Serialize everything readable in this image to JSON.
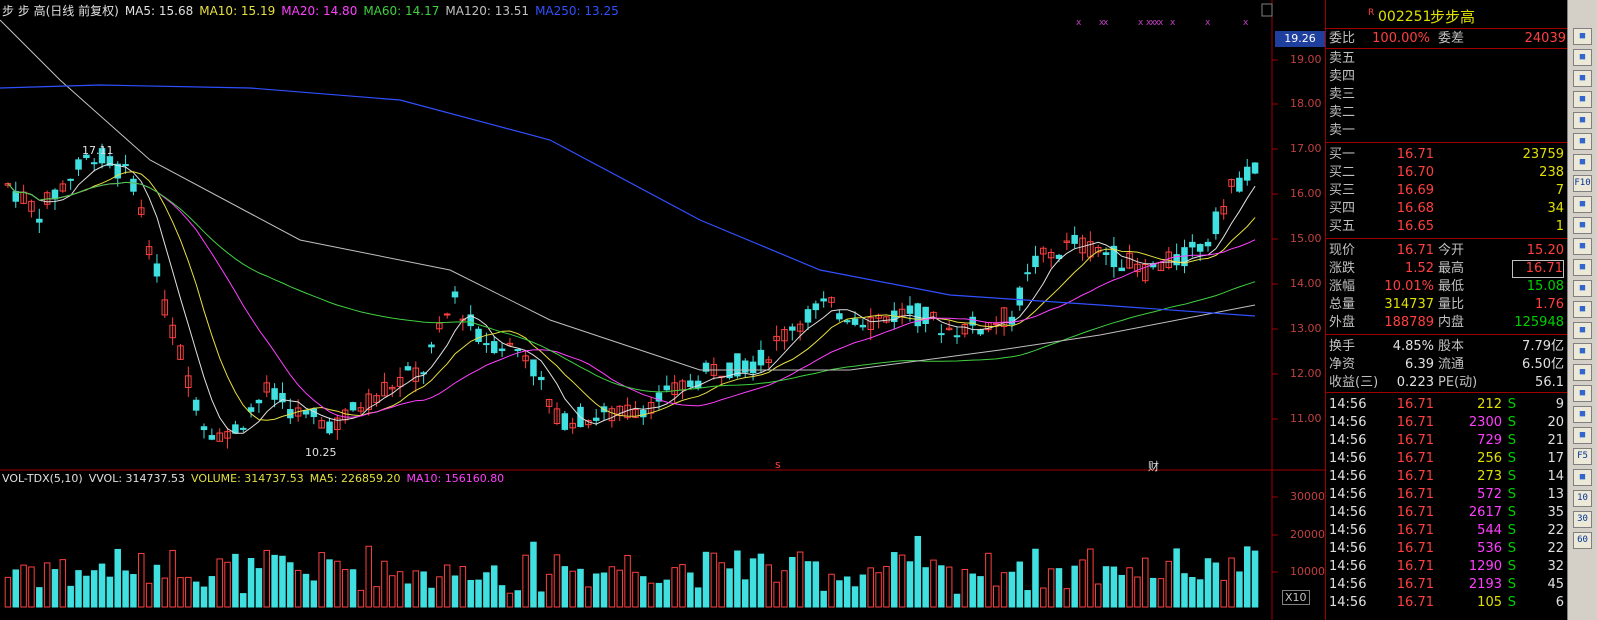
{
  "main_chart": {
    "ma_legend": [
      {
        "label": "步 步 高(日线 前复权)",
        "color": "#e0e0e0"
      },
      {
        "label": "MA5: 15.68",
        "color": "#e0e0e0"
      },
      {
        "label": "MA10: 15.19",
        "color": "#e8e040"
      },
      {
        "label": "MA20: 14.80",
        "color": "#ff40ff"
      },
      {
        "label": "MA60: 14.17",
        "color": "#40d040"
      },
      {
        "label": "MA120: 13.51",
        "color": "#c0c0c0"
      },
      {
        "label": "MA250: 13.25",
        "color": "#3050ff"
      }
    ],
    "price_ticks": [
      "19.00",
      "18.00",
      "17.00",
      "16.00",
      "15.00",
      "14.00",
      "13.00",
      "12.00",
      "11.00"
    ],
    "current_price_tag": "19.26",
    "high_annotation": "17.11",
    "low_annotation": "10.25",
    "marker_s": "s",
    "marker_cai": "财"
  },
  "chart_data": {
    "type": "candlestick",
    "ylim": [
      10.0,
      19.5
    ],
    "x_points": 150,
    "candles_sample": [
      {
        "i": 0,
        "open": 16.1,
        "close": 16.3,
        "high": 16.5,
        "low": 15.9
      },
      {
        "i": 10,
        "open": 16.8,
        "close": 17.0,
        "high": 17.11,
        "low": 16.6
      },
      {
        "i": 25,
        "open": 11.0,
        "close": 10.6,
        "high": 11.2,
        "low": 10.25
      },
      {
        "i": 56,
        "open": 13.9,
        "close": 14.2,
        "high": 14.35,
        "low": 13.7
      },
      {
        "i": 130,
        "open": 15.0,
        "close": 15.4,
        "high": 15.5,
        "low": 14.9
      },
      {
        "i": 149,
        "open": 15.2,
        "close": 16.71,
        "high": 16.71,
        "low": 15.08
      }
    ],
    "ma": {
      "MA5": 15.68,
      "MA10": 15.19,
      "MA20": 14.8,
      "MA60": 14.17,
      "MA120": 13.51,
      "MA250": 13.25
    },
    "volume": {
      "VOLUME": 314737.53,
      "MA5": 226859.2,
      "MA10": 156160.8,
      "ticks": [
        "30000",
        "20000",
        "10000"
      ],
      "unit": "X10"
    }
  },
  "vol_legend": [
    {
      "label": "VOL-TDX(5,10)",
      "color": "#e0e0e0"
    },
    {
      "label": "VVOL: 314737.53",
      "color": "#e0e0e0"
    },
    {
      "label": "VOLUME: 314737.53",
      "color": "#e0e040"
    },
    {
      "label": "MA5: 226859.20",
      "color": "#e0e040"
    },
    {
      "label": "MA10: 156160.80",
      "color": "#ff40ff"
    }
  ],
  "stock": {
    "r_mark": "R",
    "code": "002251",
    "name": "步步高",
    "weibi_label": "委比",
    "weibi_value": "100.00%",
    "weicha_label": "委差",
    "weicha_value": "24039",
    "asks": [
      {
        "label": "卖五"
      },
      {
        "label": "卖四"
      },
      {
        "label": "卖三"
      },
      {
        "label": "卖二"
      },
      {
        "label": "卖一"
      }
    ],
    "bids": [
      {
        "label": "买一",
        "price": "16.71",
        "vol": "23759"
      },
      {
        "label": "买二",
        "price": "16.70",
        "vol": "238"
      },
      {
        "label": "买三",
        "price": "16.69",
        "vol": "7"
      },
      {
        "label": "买四",
        "price": "16.68",
        "vol": "34"
      },
      {
        "label": "买五",
        "price": "16.65",
        "vol": "1"
      }
    ],
    "quote": [
      {
        "l1": "现价",
        "v1": "16.71",
        "l2": "今开",
        "v2": "15.20",
        "c1": "red",
        "c2": "red"
      },
      {
        "l1": "涨跌",
        "v1": "1.52",
        "l2": "最高",
        "v2": "16.71",
        "c1": "red",
        "c2": "red"
      },
      {
        "l1": "涨幅",
        "v1": "10.01%",
        "l2": "最低",
        "v2": "15.08",
        "c1": "red",
        "c2": "green"
      },
      {
        "l1": "总量",
        "v1": "314737",
        "l2": "量比",
        "v2": "1.76",
        "c1": "yellow",
        "c2": "red"
      },
      {
        "l1": "外盘",
        "v1": "188789",
        "l2": "内盘",
        "v2": "125948",
        "c1": "red",
        "c2": "green"
      }
    ],
    "fundamentals": [
      {
        "l1": "换手",
        "v1": "4.85%",
        "l2": "股本",
        "v2": "7.79亿"
      },
      {
        "l1": "净资",
        "v1": "6.39",
        "l2": "流通",
        "v2": "6.50亿"
      },
      {
        "l1": "收益(三)",
        "v1": "0.223",
        "l2": "PE(动)",
        "v2": "56.1"
      }
    ],
    "ticks": [
      {
        "time": "14:56",
        "price": "16.71",
        "vol": "212",
        "bs": "S",
        "n": "9",
        "vc": "yellow"
      },
      {
        "time": "14:56",
        "price": "16.71",
        "vol": "2300",
        "bs": "S",
        "n": "20",
        "vc": "magenta"
      },
      {
        "time": "14:56",
        "price": "16.71",
        "vol": "729",
        "bs": "S",
        "n": "21",
        "vc": "magenta"
      },
      {
        "time": "14:56",
        "price": "16.71",
        "vol": "256",
        "bs": "S",
        "n": "17",
        "vc": "yellow"
      },
      {
        "time": "14:56",
        "price": "16.71",
        "vol": "273",
        "bs": "S",
        "n": "14",
        "vc": "yellow"
      },
      {
        "time": "14:56",
        "price": "16.71",
        "vol": "572",
        "bs": "S",
        "n": "13",
        "vc": "magenta"
      },
      {
        "time": "14:56",
        "price": "16.71",
        "vol": "2617",
        "bs": "S",
        "n": "35",
        "vc": "magenta"
      },
      {
        "time": "14:56",
        "price": "16.71",
        "vol": "544",
        "bs": "S",
        "n": "22",
        "vc": "magenta"
      },
      {
        "time": "14:56",
        "price": "16.71",
        "vol": "536",
        "bs": "S",
        "n": "22",
        "vc": "magenta"
      },
      {
        "time": "14:56",
        "price": "16.71",
        "vol": "1290",
        "bs": "S",
        "n": "32",
        "vc": "magenta"
      },
      {
        "time": "14:56",
        "price": "16.71",
        "vol": "2193",
        "bs": "S",
        "n": "45",
        "vc": "magenta"
      },
      {
        "time": "14:56",
        "price": "16.71",
        "vol": "105",
        "bs": "S",
        "n": "6",
        "vc": "yellow"
      }
    ]
  },
  "toolbar": {
    "buttons": [
      "■",
      "■",
      "■",
      "■",
      "■",
      "■",
      "■",
      "F10",
      "■",
      "■",
      "■",
      "■",
      "■",
      "■",
      "■",
      "■",
      "■",
      "■",
      "■",
      "■",
      "F5",
      "■",
      "10",
      "30",
      "60"
    ]
  }
}
